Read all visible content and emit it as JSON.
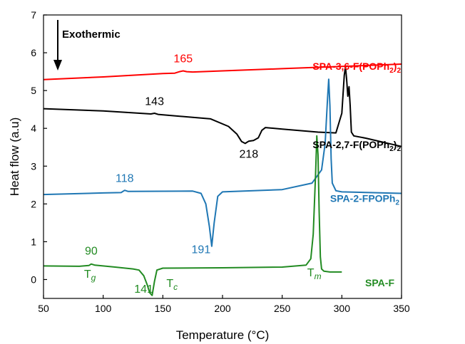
{
  "chart_data": {
    "type": "line",
    "xlabel": "Temperature (°C)",
    "ylabel": "Heat flow (a.u)",
    "xlim": [
      50,
      350
    ],
    "ylim": [
      -0.5,
      7
    ],
    "x_ticks": [
      50,
      100,
      150,
      200,
      250,
      300,
      350
    ],
    "y_ticks": [
      0,
      1,
      2,
      3,
      4,
      5,
      6,
      7
    ],
    "grid": false,
    "exo_label": "Exothermic",
    "series": [
      {
        "name": "SPA-3,6-F(POPh2)2",
        "label_base": "SPA-3,6-F(POPh",
        "label_sub": "2",
        "label_tail": ")",
        "label_sub2": "2",
        "color": "#ff0000",
        "x": [
          50,
          100,
          150,
          160,
          164,
          167,
          170,
          175,
          200,
          250,
          300,
          350
        ],
        "y": [
          5.29,
          5.36,
          5.45,
          5.46,
          5.5,
          5.52,
          5.5,
          5.49,
          5.52,
          5.58,
          5.64,
          5.7
        ]
      },
      {
        "name": "SPA-2,7-F(POPh2)2",
        "label_base": "SPA-2,7-F(POPh",
        "label_sub": "2",
        "label_tail": ")",
        "label_sub2": "2",
        "color": "#000000",
        "x": [
          50,
          100,
          140,
          143,
          146,
          190,
          205,
          212,
          216,
          219,
          222,
          226,
          230,
          233,
          236,
          250,
          280,
          295,
          300,
          302,
          303,
          304,
          305,
          306,
          307,
          308,
          310,
          320,
          350
        ],
        "y": [
          4.52,
          4.46,
          4.38,
          4.4,
          4.37,
          4.25,
          4.05,
          3.85,
          3.65,
          3.6,
          3.66,
          3.68,
          3.75,
          3.95,
          4.02,
          3.98,
          3.9,
          3.88,
          4.4,
          5.4,
          5.63,
          5.3,
          4.85,
          5.1,
          4.6,
          3.9,
          3.8,
          3.74,
          3.52
        ]
      },
      {
        "name": "SPA-2-FPOPh2",
        "label_base": "SPA-2-FPOPh",
        "label_sub": "2",
        "label_tail": "",
        "label_sub2": "",
        "color": "#1f77b4",
        "x": [
          50,
          100,
          115,
          118,
          121,
          175,
          182,
          186,
          189,
          191,
          193,
          196,
          200,
          250,
          275,
          283,
          286,
          288,
          289,
          290,
          291,
          292,
          295,
          300,
          350
        ],
        "y": [
          2.25,
          2.29,
          2.3,
          2.36,
          2.33,
          2.34,
          2.28,
          2.0,
          1.4,
          0.88,
          1.5,
          2.2,
          2.32,
          2.38,
          2.55,
          2.9,
          3.6,
          4.8,
          5.3,
          4.6,
          3.2,
          2.55,
          2.35,
          2.32,
          2.28
        ]
      },
      {
        "name": "SPA-F",
        "label_base": "SPA-F",
        "label_sub": "",
        "label_tail": "",
        "label_sub2": "",
        "color": "#228b22",
        "x": [
          50,
          80,
          88,
          90,
          93,
          110,
          125,
          130,
          134,
          137,
          139,
          141,
          143,
          145,
          150,
          200,
          250,
          270,
          274,
          276,
          278,
          279,
          280,
          281,
          282,
          283,
          285,
          290,
          300
        ],
        "y": [
          0.36,
          0.35,
          0.37,
          0.41,
          0.38,
          0.33,
          0.28,
          0.25,
          0.1,
          -0.15,
          -0.35,
          -0.42,
          -0.05,
          0.25,
          0.3,
          0.31,
          0.33,
          0.38,
          0.55,
          1.2,
          2.8,
          3.8,
          3.3,
          1.8,
          0.6,
          0.28,
          0.22,
          0.2,
          0.2
        ]
      }
    ],
    "annotations": [
      {
        "text": "165",
        "x": 167,
        "y": 5.75,
        "color": "#ff0000"
      },
      {
        "text": "143",
        "x": 143,
        "y": 4.62,
        "color": "#000000"
      },
      {
        "text": "218",
        "x": 222,
        "y": 3.22,
        "color": "#000000"
      },
      {
        "text": "118",
        "x": 118,
        "y": 2.58,
        "color": "#1f77b4"
      },
      {
        "text": "191",
        "x": 182,
        "y": 0.7,
        "color": "#1f77b4"
      },
      {
        "text": "90",
        "x": 90,
        "y": 0.66,
        "color": "#228b22"
      },
      {
        "text": "141",
        "x": 134,
        "y": -0.35,
        "color": "#228b22"
      }
    ],
    "transitions": [
      {
        "base": "T",
        "sub": "g",
        "x": 84,
        "y": 0.05,
        "color": "#228b22"
      },
      {
        "base": "T",
        "sub": "c",
        "x": 153,
        "y": -0.2,
        "color": "#228b22"
      },
      {
        "base": "T",
        "sub": "m",
        "x": 271,
        "y": 0.08,
        "color": "#228b22"
      }
    ]
  }
}
